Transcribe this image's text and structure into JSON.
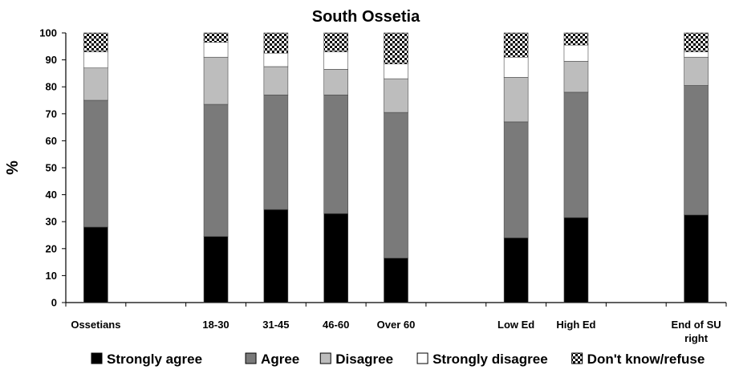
{
  "chart_data": {
    "type": "bar",
    "stacked": true,
    "title": "South Ossetia",
    "ylabel": "%",
    "xlabel": "",
    "ylim": [
      0,
      100
    ],
    "yticks": [
      0,
      10,
      20,
      30,
      40,
      50,
      60,
      70,
      80,
      90,
      100
    ],
    "grid": false,
    "legend_position": "bottom",
    "categories": [
      "Ossetians",
      "",
      "18-30",
      "31-45",
      "46-60",
      "Over 60",
      "",
      "Low Ed",
      "High Ed",
      "",
      "End of SU right"
    ],
    "category_lines": [
      [
        "Ossetians"
      ],
      [
        ""
      ],
      [
        "18-30"
      ],
      [
        "31-45"
      ],
      [
        "46-60"
      ],
      [
        "Over 60"
      ],
      [
        ""
      ],
      [
        "Low Ed"
      ],
      [
        "High Ed"
      ],
      [
        ""
      ],
      [
        "End of SU",
        "right"
      ]
    ],
    "series": [
      {
        "name": "Strongly agree",
        "color": "#000000",
        "pattern": "solid",
        "values": [
          28,
          null,
          24.5,
          34.5,
          33,
          16.5,
          null,
          24,
          31.5,
          null,
          32.5
        ]
      },
      {
        "name": "Agree",
        "color": "#7a7a7a",
        "pattern": "solid",
        "values": [
          47,
          null,
          49,
          42.5,
          44,
          54,
          null,
          43,
          46.5,
          null,
          48
        ]
      },
      {
        "name": "Disagree",
        "color": "#bdbdbd",
        "pattern": "solid",
        "values": [
          12,
          null,
          17.5,
          10.5,
          9.5,
          12.5,
          null,
          16.5,
          11.5,
          null,
          10.5
        ]
      },
      {
        "name": "Strongly disagree",
        "color": "#ffffff",
        "pattern": "solid",
        "values": [
          6,
          null,
          5.5,
          5,
          6.5,
          5.5,
          null,
          7.5,
          6,
          null,
          2
        ]
      },
      {
        "name": "Don't know/refuse",
        "color": "#000000",
        "pattern": "checker",
        "values": [
          7,
          null,
          3.5,
          7.5,
          7,
          11.5,
          null,
          9,
          4.5,
          null,
          7
        ]
      }
    ]
  }
}
